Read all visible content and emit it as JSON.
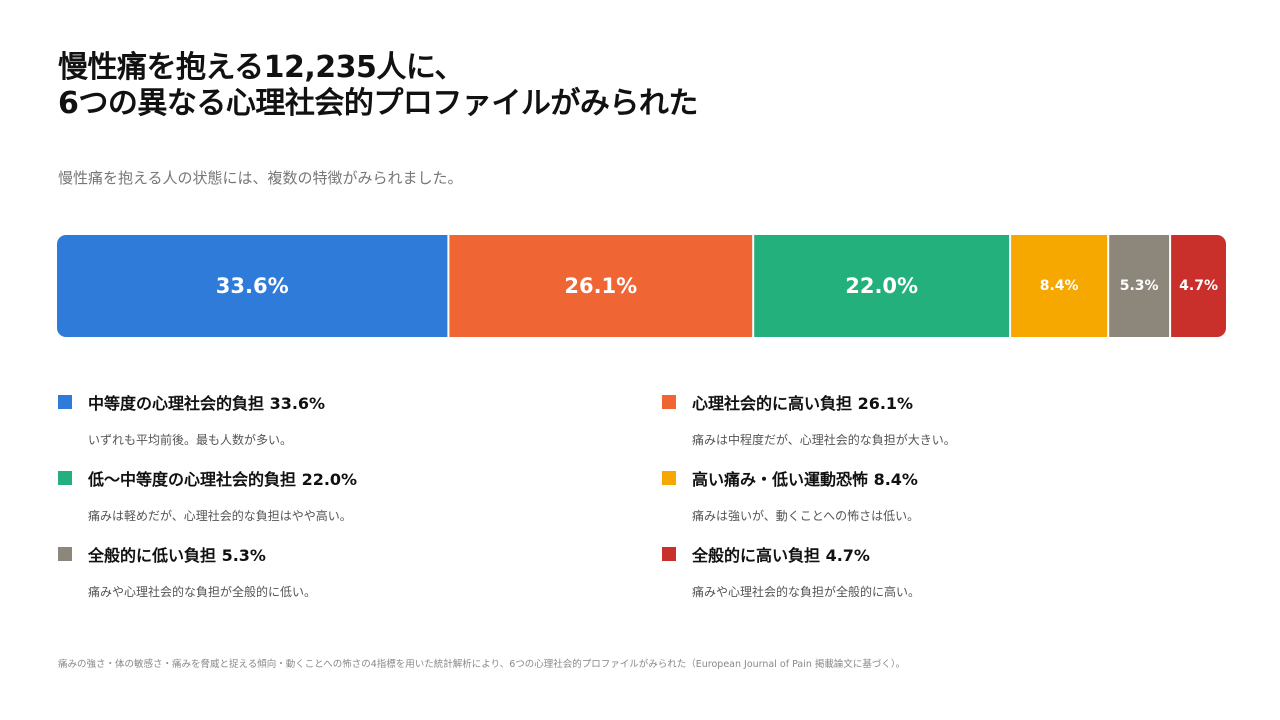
{
  "header": {
    "title_line1": "慢性痛を抱える12,235人に、",
    "title_line2": "6つの異なる心理社会的プロファイルがみられた",
    "subtitle": "慢性痛を抱える人の状態には、複数の特徴がみられました。"
  },
  "chart_data": {
    "type": "bar",
    "orientation": "horizontal-stacked-100",
    "categories": [
      "中等度の心理社会的負担",
      "心理社会的に高い負担",
      "低〜中等度の心理社会的負担",
      "高い痛み・低い運動恐怖",
      "全般的に低い負担",
      "全般的に高い負担"
    ],
    "values": [
      33.6,
      26.1,
      22.0,
      8.4,
      5.3,
      4.7
    ],
    "labels": [
      "33.6%",
      "26.1%",
      "22.0%",
      "8.4%",
      "5.3%",
      "4.7%"
    ],
    "colors": [
      "#2f7bd9",
      "#f06534",
      "#23b07d",
      "#f6a800",
      "#8c877a",
      "#c9302c"
    ],
    "unit": "%",
    "legend_placement": "bottom",
    "grid": false
  },
  "legend": [
    {
      "title": "中等度の心理社会的負担 33.6%",
      "desc": "いずれも平均前後。最も人数が多い。",
      "color": "#2f7bd9"
    },
    {
      "title": "心理社会的に高い負担 26.1%",
      "desc": "痛みは中程度だが、心理社会的な負担が大きい。",
      "color": "#f06534"
    },
    {
      "title": "低〜中等度の心理社会的負担 22.0%",
      "desc": "痛みは軽めだが、心理社会的な負担はやや高い。",
      "color": "#23b07d"
    },
    {
      "title": "高い痛み・低い運動恐怖 8.4%",
      "desc": "痛みは強いが、動くことへの怖さは低い。",
      "color": "#f6a800"
    },
    {
      "title": "全般的に低い負担 5.3%",
      "desc": "痛みや心理社会的な負担が全般的に低い。",
      "color": "#8c877a"
    },
    {
      "title": "全般的に高い負担 4.7%",
      "desc": "痛みや心理社会的な負担が全般的に高い。",
      "color": "#c9302c"
    }
  ],
  "footnote": "痛みの強さ・体の敏感さ・痛みを脅威と捉える傾向・動くことへの怖さの4指標を用いた統計解析により、6つの心理社会的プロファイルがみられた（European Journal of Pain 掲載論文に基づく）。"
}
